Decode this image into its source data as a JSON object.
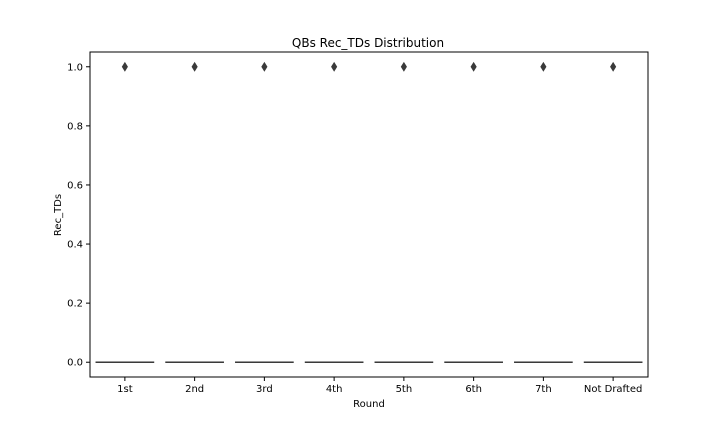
{
  "chart_data": {
    "type": "boxplot",
    "title": "QBs Rec_TDs Distribution",
    "xlabel": "Round",
    "ylabel": "Rec_TDs",
    "categories": [
      "1st",
      "2nd",
      "3rd",
      "4th",
      "5th",
      "6th",
      "7th",
      "Not Drafted"
    ],
    "ylim": [
      -0.05,
      1.05
    ],
    "yticks": [
      0.0,
      0.2,
      0.4,
      0.6,
      0.8,
      1.0
    ],
    "ytick_labels": [
      "0.0",
      "0.2",
      "0.4",
      "0.6",
      "0.8",
      "1.0"
    ],
    "boxes": [
      {
        "category": "1st",
        "median": 0,
        "q1": 0,
        "q3": 0,
        "whisker_low": 0,
        "whisker_high": 0,
        "outliers": [
          1.0
        ]
      },
      {
        "category": "2nd",
        "median": 0,
        "q1": 0,
        "q3": 0,
        "whisker_low": 0,
        "whisker_high": 0,
        "outliers": [
          1.0
        ]
      },
      {
        "category": "3rd",
        "median": 0,
        "q1": 0,
        "q3": 0,
        "whisker_low": 0,
        "whisker_high": 0,
        "outliers": [
          1.0
        ]
      },
      {
        "category": "4th",
        "median": 0,
        "q1": 0,
        "q3": 0,
        "whisker_low": 0,
        "whisker_high": 0,
        "outliers": [
          1.0
        ]
      },
      {
        "category": "5th",
        "median": 0,
        "q1": 0,
        "q3": 0,
        "whisker_low": 0,
        "whisker_high": 0,
        "outliers": [
          1.0
        ]
      },
      {
        "category": "6th",
        "median": 0,
        "q1": 0,
        "q3": 0,
        "whisker_low": 0,
        "whisker_high": 0,
        "outliers": [
          1.0
        ]
      },
      {
        "category": "7th",
        "median": 0,
        "q1": 0,
        "q3": 0,
        "whisker_low": 0,
        "whisker_high": 0,
        "outliers": [
          1.0
        ]
      },
      {
        "category": "Not Drafted",
        "median": 0,
        "q1": 0,
        "q3": 0,
        "whisker_low": 0,
        "whisker_high": 0,
        "outliers": [
          1.0
        ]
      }
    ],
    "grid": false,
    "colors": {
      "box": "#3a3a3a",
      "axis": "#000000",
      "background": "#ffffff"
    }
  }
}
